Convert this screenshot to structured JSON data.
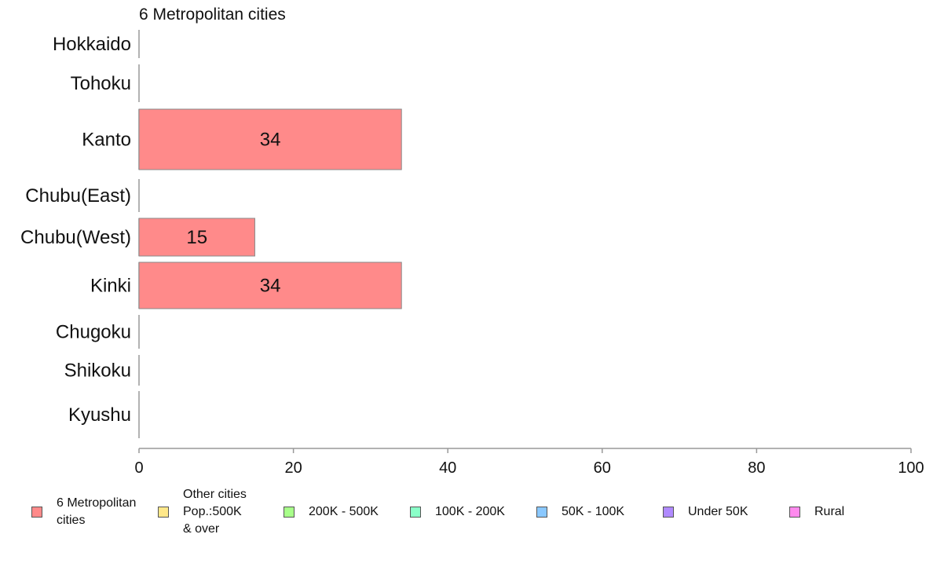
{
  "chart_data": {
    "type": "bar",
    "orientation": "horizontal",
    "title": "6 Metropolitan cities",
    "categories": [
      "Hokkaido",
      "Tohoku",
      "Kanto",
      "Chubu(East)",
      "Chubu(West)",
      "Kinki",
      "Chugoku",
      "Shikoku",
      "Kyushu"
    ],
    "series": [
      {
        "name": "6 Metropolitan cities",
        "values": [
          0,
          0,
          34,
          0,
          15,
          34,
          0,
          0,
          0
        ]
      }
    ],
    "data_labels": [
      "",
      "",
      "34",
      "",
      "15",
      "34",
      "",
      "",
      ""
    ],
    "xlim": [
      0,
      100
    ],
    "xticks": [
      0,
      20,
      40,
      60,
      80,
      100
    ],
    "xtick_labels": [
      "0",
      "20",
      "40",
      "60",
      "80",
      "100"
    ],
    "grid": false,
    "bar_color": "#ff8a8a",
    "legend_position": "bottom",
    "legend": [
      {
        "label": "6 Metropolitan\ncities",
        "color": "#ff8a8a"
      },
      {
        "label": "Other cities\nPop.:500K\n& over",
        "color": "#ffe88a"
      },
      {
        "label": "200K - 500K",
        "color": "#a8ff8a"
      },
      {
        "label": "100K - 200K",
        "color": "#8affc8"
      },
      {
        "label": "50K - 100K",
        "color": "#8ac8ff"
      },
      {
        "label": "Under 50K",
        "color": "#b08aff"
      },
      {
        "label": "Rural",
        "color": "#ff8aee"
      }
    ]
  }
}
